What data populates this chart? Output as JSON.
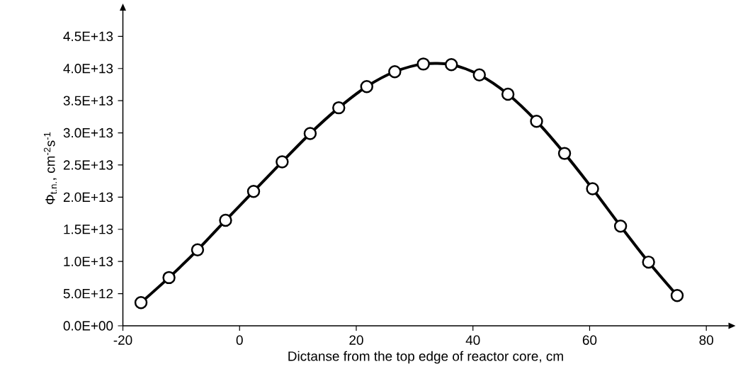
{
  "chart_data": {
    "type": "line",
    "xlabel": "Dictanse from the top edge of reactor core, cm",
    "ylabel": "Φ$_{t.n.}$, cm$^{-2}$s$^{-1}$",
    "x": [
      -16.9,
      -12.1,
      -7.2,
      -2.4,
      2.4,
      7.3,
      12.1,
      17.0,
      21.8,
      26.6,
      31.5,
      36.3,
      41.1,
      46.0,
      50.9,
      55.7,
      60.5,
      65.3,
      70.1,
      75.0
    ],
    "series": [
      {
        "color": "#000000",
        "values": [
          3600000000000.0,
          7500000000000.0,
          11800000000000.0,
          16400000000000.0,
          20900000000000.0,
          25500000000000.0,
          29900000000000.0,
          33900000000000.0,
          37200000000000.0,
          39500000000000.0,
          40700000000000.0,
          40600000000000.0,
          39000000000000.0,
          36000000000000.0,
          31800000000000.0,
          26800000000000.0,
          21300000000000.0,
          15500000000000.0,
          9900000000000.0,
          4700000000000.0
        ]
      }
    ],
    "xlim": [
      -20,
      83.8
    ],
    "ylim": [
      0,
      49000000000000.0
    ],
    "xticks": [
      -20,
      0,
      20,
      40,
      60,
      80
    ],
    "yticks": [
      {
        "value": 0,
        "label": "0.0E+00"
      },
      {
        "value": 5000000000000.0,
        "label": "5.0E+12"
      },
      {
        "value": 10000000000000.0,
        "label": "1.0E+13"
      },
      {
        "value": 15000000000000.0,
        "label": "1.5E+13"
      },
      {
        "value": 20000000000000.0,
        "label": "2.0E+13"
      },
      {
        "value": 25000000000000.0,
        "label": "2.5E+13"
      },
      {
        "value": 30000000000000.0,
        "label": "3.0E+13"
      },
      {
        "value": 35000000000000.0,
        "label": "3.5E+13"
      },
      {
        "value": 40000000000000.0,
        "label": "4.0E+13"
      },
      {
        "value": 45000000000000.0,
        "label": "4.5E+13"
      }
    ],
    "grid": false,
    "legend": false,
    "marker": "circle",
    "line_style": "solid"
  }
}
